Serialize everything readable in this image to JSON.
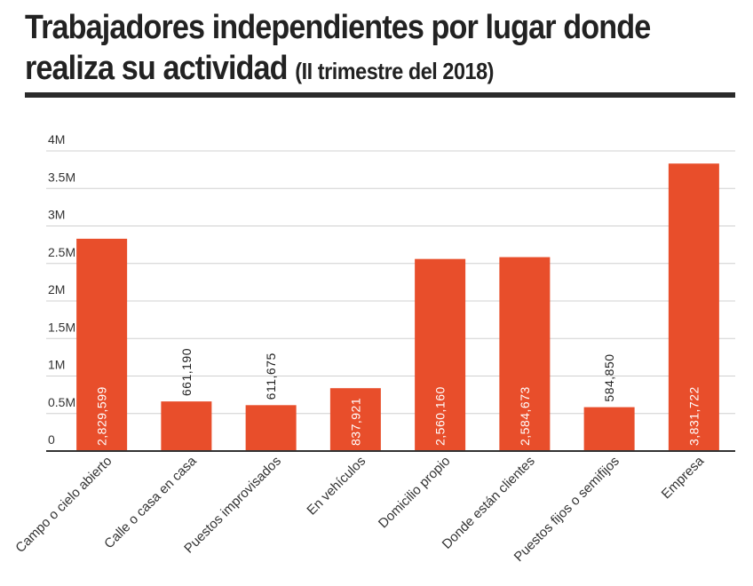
{
  "title": {
    "main_line1": "Trabajadores independientes por lugar donde",
    "main_line2": "realiza su actividad",
    "subtitle": "(II trimestre del 2018)"
  },
  "colors": {
    "bar": "#e84e2b",
    "label_inside": "#ffffff",
    "label_outside": "#222222",
    "grid": "#d0d0d0",
    "axis": "#333333",
    "rule": "#2b2b2b"
  },
  "chart_data": {
    "type": "bar",
    "title": "Trabajadores independientes por lugar donde realiza su actividad (II trimestre del 2018)",
    "categories": [
      "Campo o cielo abierto",
      "Calle o casa en casa",
      "Puestos improvisados",
      "En vehículos",
      "Domicilio propio",
      "Donde están clientes",
      "Puestos fijos o semifijos",
      "Empresa"
    ],
    "values": [
      2829599,
      661190,
      611675,
      837921,
      2560160,
      2584673,
      584850,
      3831722
    ],
    "value_labels": [
      "2,829,599",
      "661,190",
      "611,675",
      "837,921",
      "2,560,160",
      "2,584,673",
      "584,850",
      "3,831,722"
    ],
    "ylim": [
      0,
      4000000
    ],
    "yticks": [
      0,
      500000,
      1000000,
      1500000,
      2000000,
      2500000,
      3000000,
      3500000,
      4000000
    ],
    "ytick_labels": [
      "0",
      "0.5M",
      "1M",
      "1.5M",
      "2M",
      "2.5M",
      "3M",
      "3.5M",
      "4M"
    ],
    "grid": true,
    "legend": "none"
  }
}
